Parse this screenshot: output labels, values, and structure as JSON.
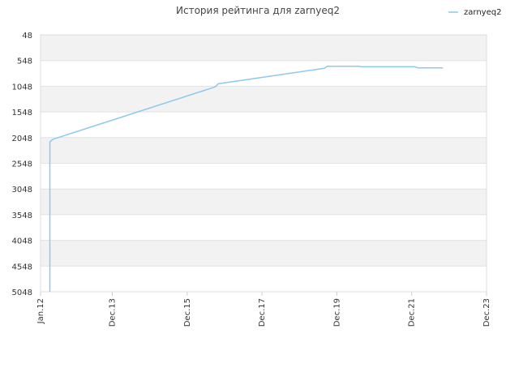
{
  "chart_data": {
    "type": "line",
    "title": "История рейтинга для zarnyeq2",
    "legend": {
      "position": "top-right",
      "entries": [
        "zarnyeq2"
      ]
    },
    "series_color": "#8ec8ea",
    "band_color": "#f2f2f2",
    "grid": true,
    "y_inverted": true,
    "ylim": [
      48,
      5048
    ],
    "y_ticks": [
      "48",
      "548",
      "1048",
      "1548",
      "2048",
      "2548",
      "3048",
      "3548",
      "4048",
      "4548",
      "5048"
    ],
    "x_ticks": [
      "Jan.12",
      "Dec.13",
      "Dec.15",
      "Dec.17",
      "Dec.19",
      "Dec.21",
      "Dec.23"
    ],
    "x_tick_dates": [
      "2012-01",
      "2013-12",
      "2015-12",
      "2017-12",
      "2019-12",
      "2021-12",
      "2023-12"
    ],
    "series": [
      {
        "name": "zarnyeq2",
        "points": [
          {
            "x": "2012-04",
            "y": 5048
          },
          {
            "x": "2012-04",
            "y": 2130
          },
          {
            "x": "2012-05",
            "y": 2080
          },
          {
            "x": "2016-09",
            "y": 1060
          },
          {
            "x": "2016-10",
            "y": 1000
          },
          {
            "x": "2019-08",
            "y": 700
          },
          {
            "x": "2019-09",
            "y": 660
          },
          {
            "x": "2020-07",
            "y": 660
          },
          {
            "x": "2020-08",
            "y": 670
          },
          {
            "x": "2022-01",
            "y": 670
          },
          {
            "x": "2022-02",
            "y": 690
          },
          {
            "x": "2022-10",
            "y": 690
          }
        ]
      }
    ]
  }
}
